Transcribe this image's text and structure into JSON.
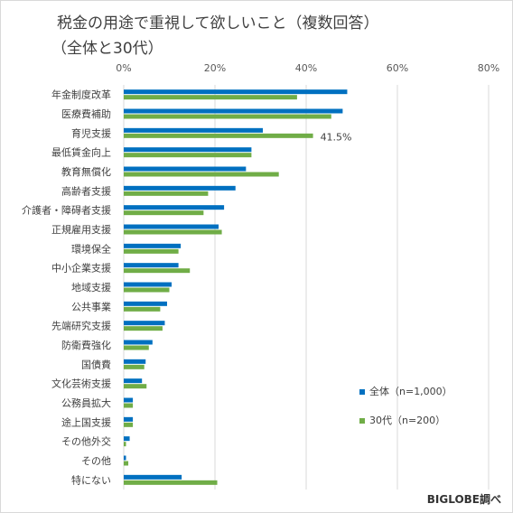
{
  "title_line1": "税金の用途で重視して欲しいこと（複数回答）",
  "title_line2": "（全体と30代）",
  "brand": "BIGLOBE調べ",
  "colors": {
    "series1": "#0070c0",
    "series2": "#70ad47"
  },
  "chart_data": {
    "type": "bar",
    "orientation": "horizontal",
    "xlim": [
      0,
      80
    ],
    "ticks": [
      "0%",
      "20%",
      "40%",
      "60%",
      "80%"
    ],
    "tick_values": [
      0,
      20,
      40,
      60,
      80
    ],
    "grid": true,
    "legend_position": "right",
    "categories": [
      "年金制度改革",
      "医療費補助",
      "育児支援",
      "最低賃金向上",
      "教育無償化",
      "高齢者支援",
      "介護者・障碍者支援",
      "正規雇用支援",
      "環境保全",
      "中小企業支援",
      "地域支援",
      "公共事業",
      "先端研究支援",
      "防衛費強化",
      "国債費",
      "文化芸術支援",
      "公務員拡大",
      "途上国支援",
      "その他外交",
      "その他",
      "特にない"
    ],
    "series": [
      {
        "name": "全体（n=1,000）",
        "values": [
          49.0,
          48.0,
          30.5,
          28.0,
          26.8,
          24.5,
          22.0,
          20.8,
          12.5,
          12.0,
          10.5,
          9.5,
          9.0,
          6.3,
          4.8,
          4.0,
          2.0,
          2.0,
          1.3,
          0.5,
          12.7
        ]
      },
      {
        "name": "30代（n=200）",
        "values": [
          38.0,
          45.5,
          41.5,
          28.0,
          34.0,
          18.5,
          17.5,
          21.5,
          12.0,
          14.5,
          10.0,
          8.0,
          8.5,
          5.5,
          4.5,
          5.0,
          2.0,
          2.0,
          0.5,
          1.0,
          20.5
        ]
      }
    ],
    "annotations": [
      {
        "text": "41.5%"
      }
    ]
  }
}
